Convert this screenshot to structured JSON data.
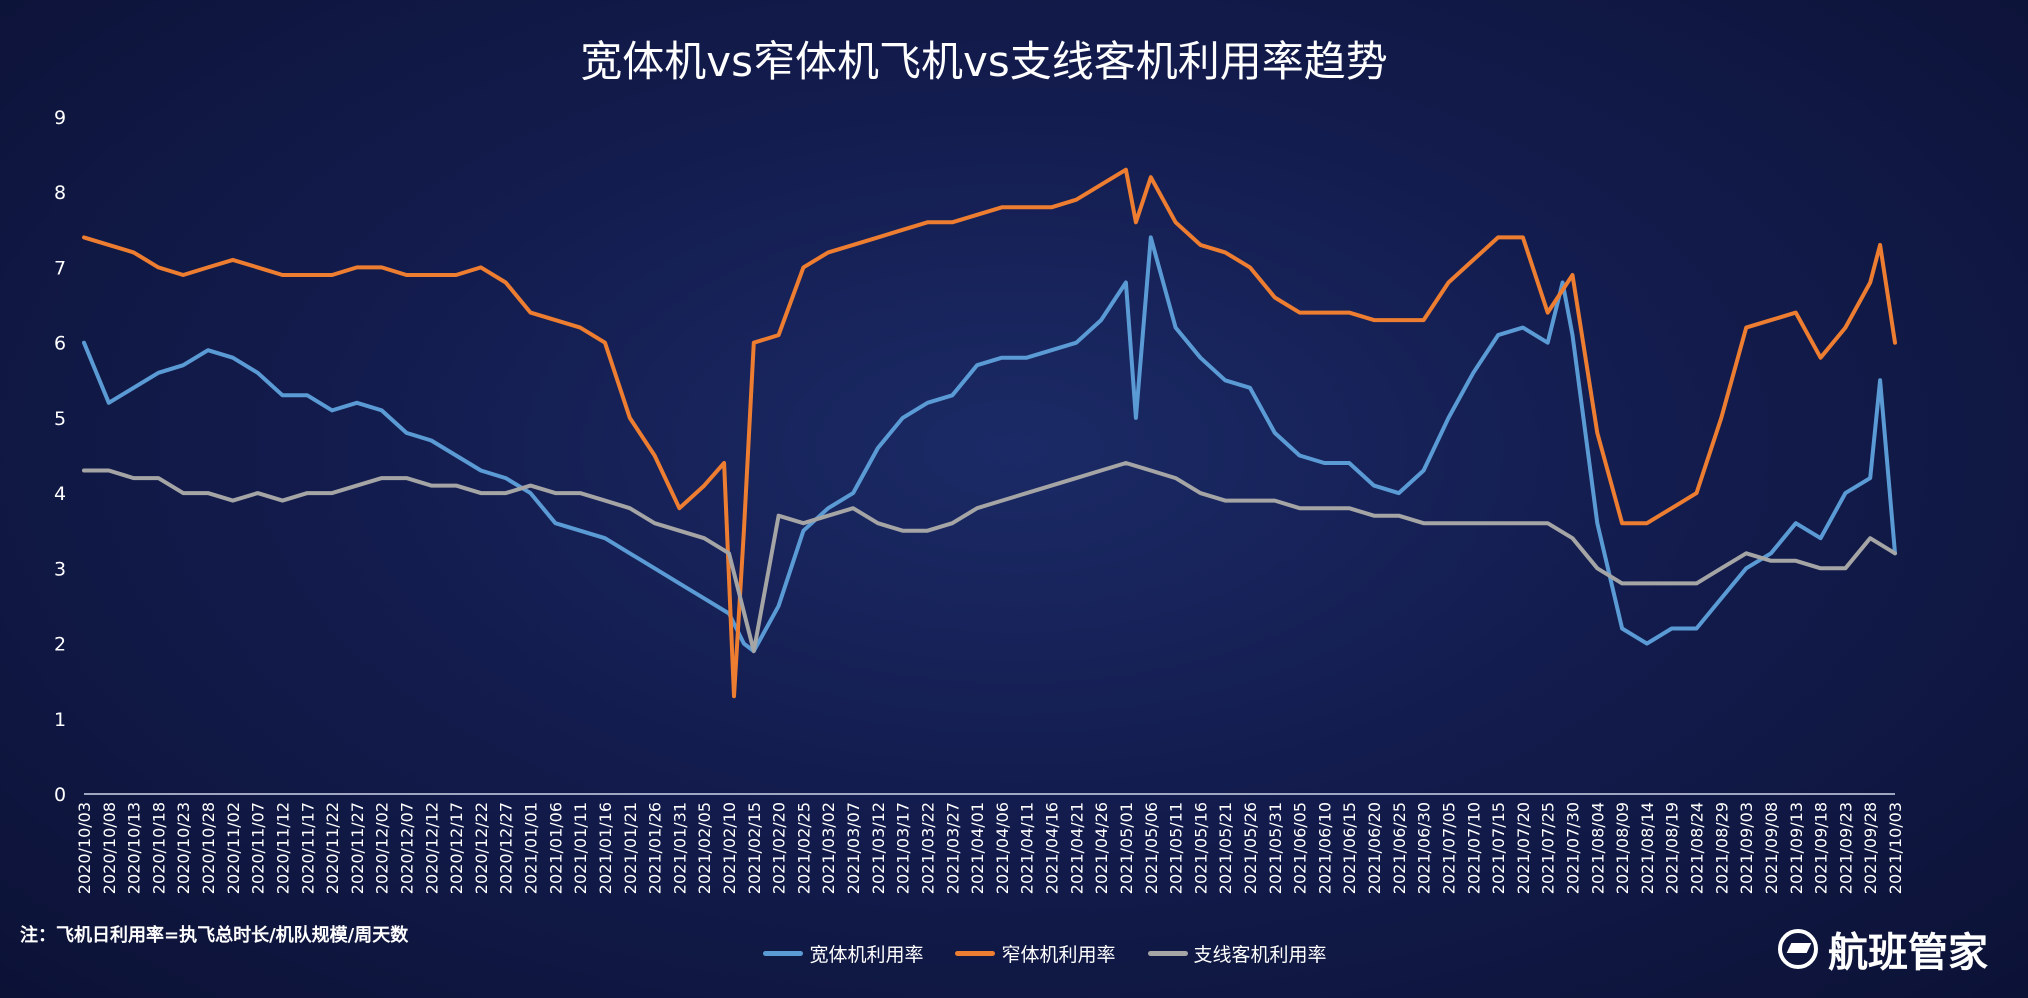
{
  "chart_data": {
    "type": "line",
    "title": "宽体机vs窄体机飞机vs支线客机利用率趋势",
    "xlabel": "",
    "ylabel": "",
    "ylim": [
      0,
      9
    ],
    "yticks": [
      0,
      1,
      2,
      3,
      4,
      5,
      6,
      7,
      8,
      9
    ],
    "grid": false,
    "legend_position": "bottom",
    "x_start": "2020-10-03",
    "x_end": "2021-10-03",
    "xtick_labels": [
      "2020/10/03",
      "2020/10/08",
      "2020/10/13",
      "2020/10/18",
      "2020/10/23",
      "2020/10/28",
      "2020/11/02",
      "2020/11/07",
      "2020/11/12",
      "2020/11/17",
      "2020/11/22",
      "2020/11/27",
      "2020/12/02",
      "2020/12/07",
      "2020/12/12",
      "2020/12/17",
      "2020/12/22",
      "2020/12/27",
      "2021/01/01",
      "2021/01/06",
      "2021/01/11",
      "2021/01/16",
      "2021/01/21",
      "2021/01/26",
      "2021/01/31",
      "2021/02/05",
      "2021/02/10",
      "2021/02/15",
      "2021/02/20",
      "2021/02/25",
      "2021/03/02",
      "2021/03/07",
      "2021/03/12",
      "2021/03/17",
      "2021/03/22",
      "2021/03/27",
      "2021/04/01",
      "2021/04/06",
      "2021/04/11",
      "2021/04/16",
      "2021/04/21",
      "2021/04/26",
      "2021/05/01",
      "2021/05/06",
      "2021/05/11",
      "2021/05/16",
      "2021/05/21",
      "2021/05/26",
      "2021/05/31",
      "2021/06/05",
      "2021/06/10",
      "2021/06/15",
      "2021/06/20",
      "2021/06/25",
      "2021/06/30",
      "2021/07/05",
      "2021/07/10",
      "2021/07/15",
      "2021/07/20",
      "2021/07/25",
      "2021/07/30",
      "2021/08/04",
      "2021/08/09",
      "2021/08/14",
      "2021/08/19",
      "2021/08/24",
      "2021/08/29",
      "2021/09/03",
      "2021/09/08",
      "2021/09/13",
      "2021/09/18",
      "2021/09/23",
      "2021/09/28",
      "2021/10/03"
    ],
    "series": [
      {
        "name": "宽体机利用率",
        "color": "#5b9bd5",
        "x": [
          "2020-10-03",
          "2020-10-08",
          "2020-10-13",
          "2020-10-18",
          "2020-10-23",
          "2020-10-28",
          "2020-11-02",
          "2020-11-07",
          "2020-11-12",
          "2020-11-17",
          "2020-11-22",
          "2020-11-27",
          "2020-12-02",
          "2020-12-07",
          "2020-12-12",
          "2020-12-17",
          "2020-12-22",
          "2020-12-27",
          "2021-01-01",
          "2021-01-06",
          "2021-01-11",
          "2021-01-16",
          "2021-01-21",
          "2021-01-26",
          "2021-01-31",
          "2021-02-05",
          "2021-02-10",
          "2021-02-13",
          "2021-02-15",
          "2021-02-20",
          "2021-02-25",
          "2021-03-02",
          "2021-03-07",
          "2021-03-12",
          "2021-03-17",
          "2021-03-22",
          "2021-03-27",
          "2021-04-01",
          "2021-04-06",
          "2021-04-11",
          "2021-04-16",
          "2021-04-21",
          "2021-04-26",
          "2021-05-01",
          "2021-05-03",
          "2021-05-06",
          "2021-05-11",
          "2021-05-16",
          "2021-05-21",
          "2021-05-26",
          "2021-05-31",
          "2021-06-05",
          "2021-06-10",
          "2021-06-15",
          "2021-06-20",
          "2021-06-25",
          "2021-06-30",
          "2021-07-05",
          "2021-07-10",
          "2021-07-15",
          "2021-07-20",
          "2021-07-25",
          "2021-07-28",
          "2021-07-30",
          "2021-08-04",
          "2021-08-09",
          "2021-08-14",
          "2021-08-19",
          "2021-08-24",
          "2021-08-29",
          "2021-09-03",
          "2021-09-08",
          "2021-09-13",
          "2021-09-18",
          "2021-09-23",
          "2021-09-28",
          "2021-09-30",
          "2021-10-03"
        ],
        "values": [
          6.0,
          5.2,
          5.4,
          5.6,
          5.7,
          5.9,
          5.8,
          5.6,
          5.3,
          5.3,
          5.1,
          5.2,
          5.1,
          4.8,
          4.7,
          4.5,
          4.3,
          4.2,
          4.0,
          3.6,
          3.5,
          3.4,
          3.2,
          3.0,
          2.8,
          2.6,
          2.4,
          2.0,
          1.9,
          2.5,
          3.5,
          3.8,
          4.0,
          4.6,
          5.0,
          5.2,
          5.3,
          5.7,
          5.8,
          5.8,
          5.9,
          6.0,
          6.3,
          6.8,
          5.0,
          7.4,
          6.2,
          5.8,
          5.5,
          5.4,
          4.8,
          4.5,
          4.4,
          4.4,
          4.1,
          4.0,
          4.3,
          5.0,
          5.6,
          6.1,
          6.2,
          6.0,
          6.8,
          6.1,
          3.6,
          2.2,
          2.0,
          2.2,
          2.2,
          2.6,
          3.0,
          3.2,
          3.6,
          3.4,
          4.0,
          4.2,
          5.5,
          3.2
        ]
      },
      {
        "name": "窄体机利用率",
        "color": "#ed7d31",
        "x": [
          "2020-10-03",
          "2020-10-08",
          "2020-10-13",
          "2020-10-18",
          "2020-10-23",
          "2020-10-28",
          "2020-11-02",
          "2020-11-07",
          "2020-11-12",
          "2020-11-17",
          "2020-11-22",
          "2020-11-27",
          "2020-12-02",
          "2020-12-07",
          "2020-12-12",
          "2020-12-17",
          "2020-12-22",
          "2020-12-27",
          "2021-01-01",
          "2021-01-06",
          "2021-01-11",
          "2021-01-16",
          "2021-01-21",
          "2021-01-26",
          "2021-01-31",
          "2021-02-05",
          "2021-02-09",
          "2021-02-11",
          "2021-02-13",
          "2021-02-15",
          "2021-02-20",
          "2021-02-25",
          "2021-03-02",
          "2021-03-07",
          "2021-03-12",
          "2021-03-17",
          "2021-03-22",
          "2021-03-27",
          "2021-04-01",
          "2021-04-06",
          "2021-04-11",
          "2021-04-16",
          "2021-04-21",
          "2021-04-26",
          "2021-05-01",
          "2021-05-03",
          "2021-05-06",
          "2021-05-11",
          "2021-05-16",
          "2021-05-21",
          "2021-05-26",
          "2021-05-31",
          "2021-06-05",
          "2021-06-10",
          "2021-06-15",
          "2021-06-20",
          "2021-06-25",
          "2021-06-30",
          "2021-07-05",
          "2021-07-10",
          "2021-07-15",
          "2021-07-20",
          "2021-07-25",
          "2021-07-30",
          "2021-08-04",
          "2021-08-09",
          "2021-08-14",
          "2021-08-19",
          "2021-08-24",
          "2021-08-29",
          "2021-09-03",
          "2021-09-08",
          "2021-09-13",
          "2021-09-18",
          "2021-09-23",
          "2021-09-28",
          "2021-09-30",
          "2021-10-03"
        ],
        "values": [
          7.4,
          7.3,
          7.2,
          7.0,
          6.9,
          7.0,
          7.1,
          7.0,
          6.9,
          6.9,
          6.9,
          7.0,
          7.0,
          6.9,
          6.9,
          6.9,
          7.0,
          6.8,
          6.4,
          6.3,
          6.2,
          6.0,
          5.0,
          4.5,
          3.8,
          4.1,
          4.4,
          1.3,
          3.5,
          6.0,
          6.1,
          7.0,
          7.2,
          7.3,
          7.4,
          7.5,
          7.6,
          7.6,
          7.7,
          7.8,
          7.8,
          7.8,
          7.9,
          8.1,
          8.3,
          7.6,
          8.2,
          7.6,
          7.3,
          7.2,
          7.0,
          6.6,
          6.4,
          6.4,
          6.4,
          6.3,
          6.3,
          6.3,
          6.8,
          7.1,
          7.4,
          7.4,
          6.4,
          6.9,
          4.8,
          3.6,
          3.6,
          3.8,
          4.0,
          5.0,
          6.2,
          6.3,
          6.4,
          5.8,
          6.2,
          6.8,
          7.3,
          6.0
        ]
      },
      {
        "name": "支线客机利用率",
        "color": "#a5a5a5",
        "x": [
          "2020-10-03",
          "2020-10-08",
          "2020-10-13",
          "2020-10-18",
          "2020-10-23",
          "2020-10-28",
          "2020-11-02",
          "2020-11-07",
          "2020-11-12",
          "2020-11-17",
          "2020-11-22",
          "2020-11-27",
          "2020-12-02",
          "2020-12-07",
          "2020-12-12",
          "2020-12-17",
          "2020-12-22",
          "2020-12-27",
          "2021-01-01",
          "2021-01-06",
          "2021-01-11",
          "2021-01-16",
          "2021-01-21",
          "2021-01-26",
          "2021-01-31",
          "2021-02-05",
          "2021-02-10",
          "2021-02-15",
          "2021-02-20",
          "2021-02-25",
          "2021-03-02",
          "2021-03-07",
          "2021-03-12",
          "2021-03-17",
          "2021-03-22",
          "2021-03-27",
          "2021-04-01",
          "2021-04-06",
          "2021-04-11",
          "2021-04-16",
          "2021-04-21",
          "2021-04-26",
          "2021-05-01",
          "2021-05-06",
          "2021-05-11",
          "2021-05-16",
          "2021-05-21",
          "2021-05-26",
          "2021-05-31",
          "2021-06-05",
          "2021-06-10",
          "2021-06-15",
          "2021-06-20",
          "2021-06-25",
          "2021-06-30",
          "2021-07-05",
          "2021-07-10",
          "2021-07-15",
          "2021-07-20",
          "2021-07-25",
          "2021-07-30",
          "2021-08-04",
          "2021-08-09",
          "2021-08-14",
          "2021-08-19",
          "2021-08-24",
          "2021-08-29",
          "2021-09-03",
          "2021-09-08",
          "2021-09-13",
          "2021-09-18",
          "2021-09-23",
          "2021-09-28",
          "2021-10-03"
        ],
        "values": [
          4.3,
          4.3,
          4.2,
          4.2,
          4.0,
          4.0,
          3.9,
          4.0,
          3.9,
          4.0,
          4.0,
          4.1,
          4.2,
          4.2,
          4.1,
          4.1,
          4.0,
          4.0,
          4.1,
          4.0,
          4.0,
          3.9,
          3.8,
          3.6,
          3.5,
          3.4,
          3.2,
          1.9,
          3.7,
          3.6,
          3.7,
          3.8,
          3.6,
          3.5,
          3.5,
          3.6,
          3.8,
          3.9,
          4.0,
          4.1,
          4.2,
          4.3,
          4.4,
          4.3,
          4.2,
          4.0,
          3.9,
          3.9,
          3.9,
          3.8,
          3.8,
          3.8,
          3.7,
          3.7,
          3.6,
          3.6,
          3.6,
          3.6,
          3.6,
          3.6,
          3.4,
          3.0,
          2.8,
          2.8,
          2.8,
          2.8,
          3.0,
          3.2,
          3.1,
          3.1,
          3.0,
          3.0,
          3.4,
          3.2
        ]
      }
    ]
  },
  "note": "注：飞机日利用率=执飞总时长/机队规模/周天数",
  "brand": {
    "name": "航班管家",
    "icon": "airplane-logo-icon"
  }
}
